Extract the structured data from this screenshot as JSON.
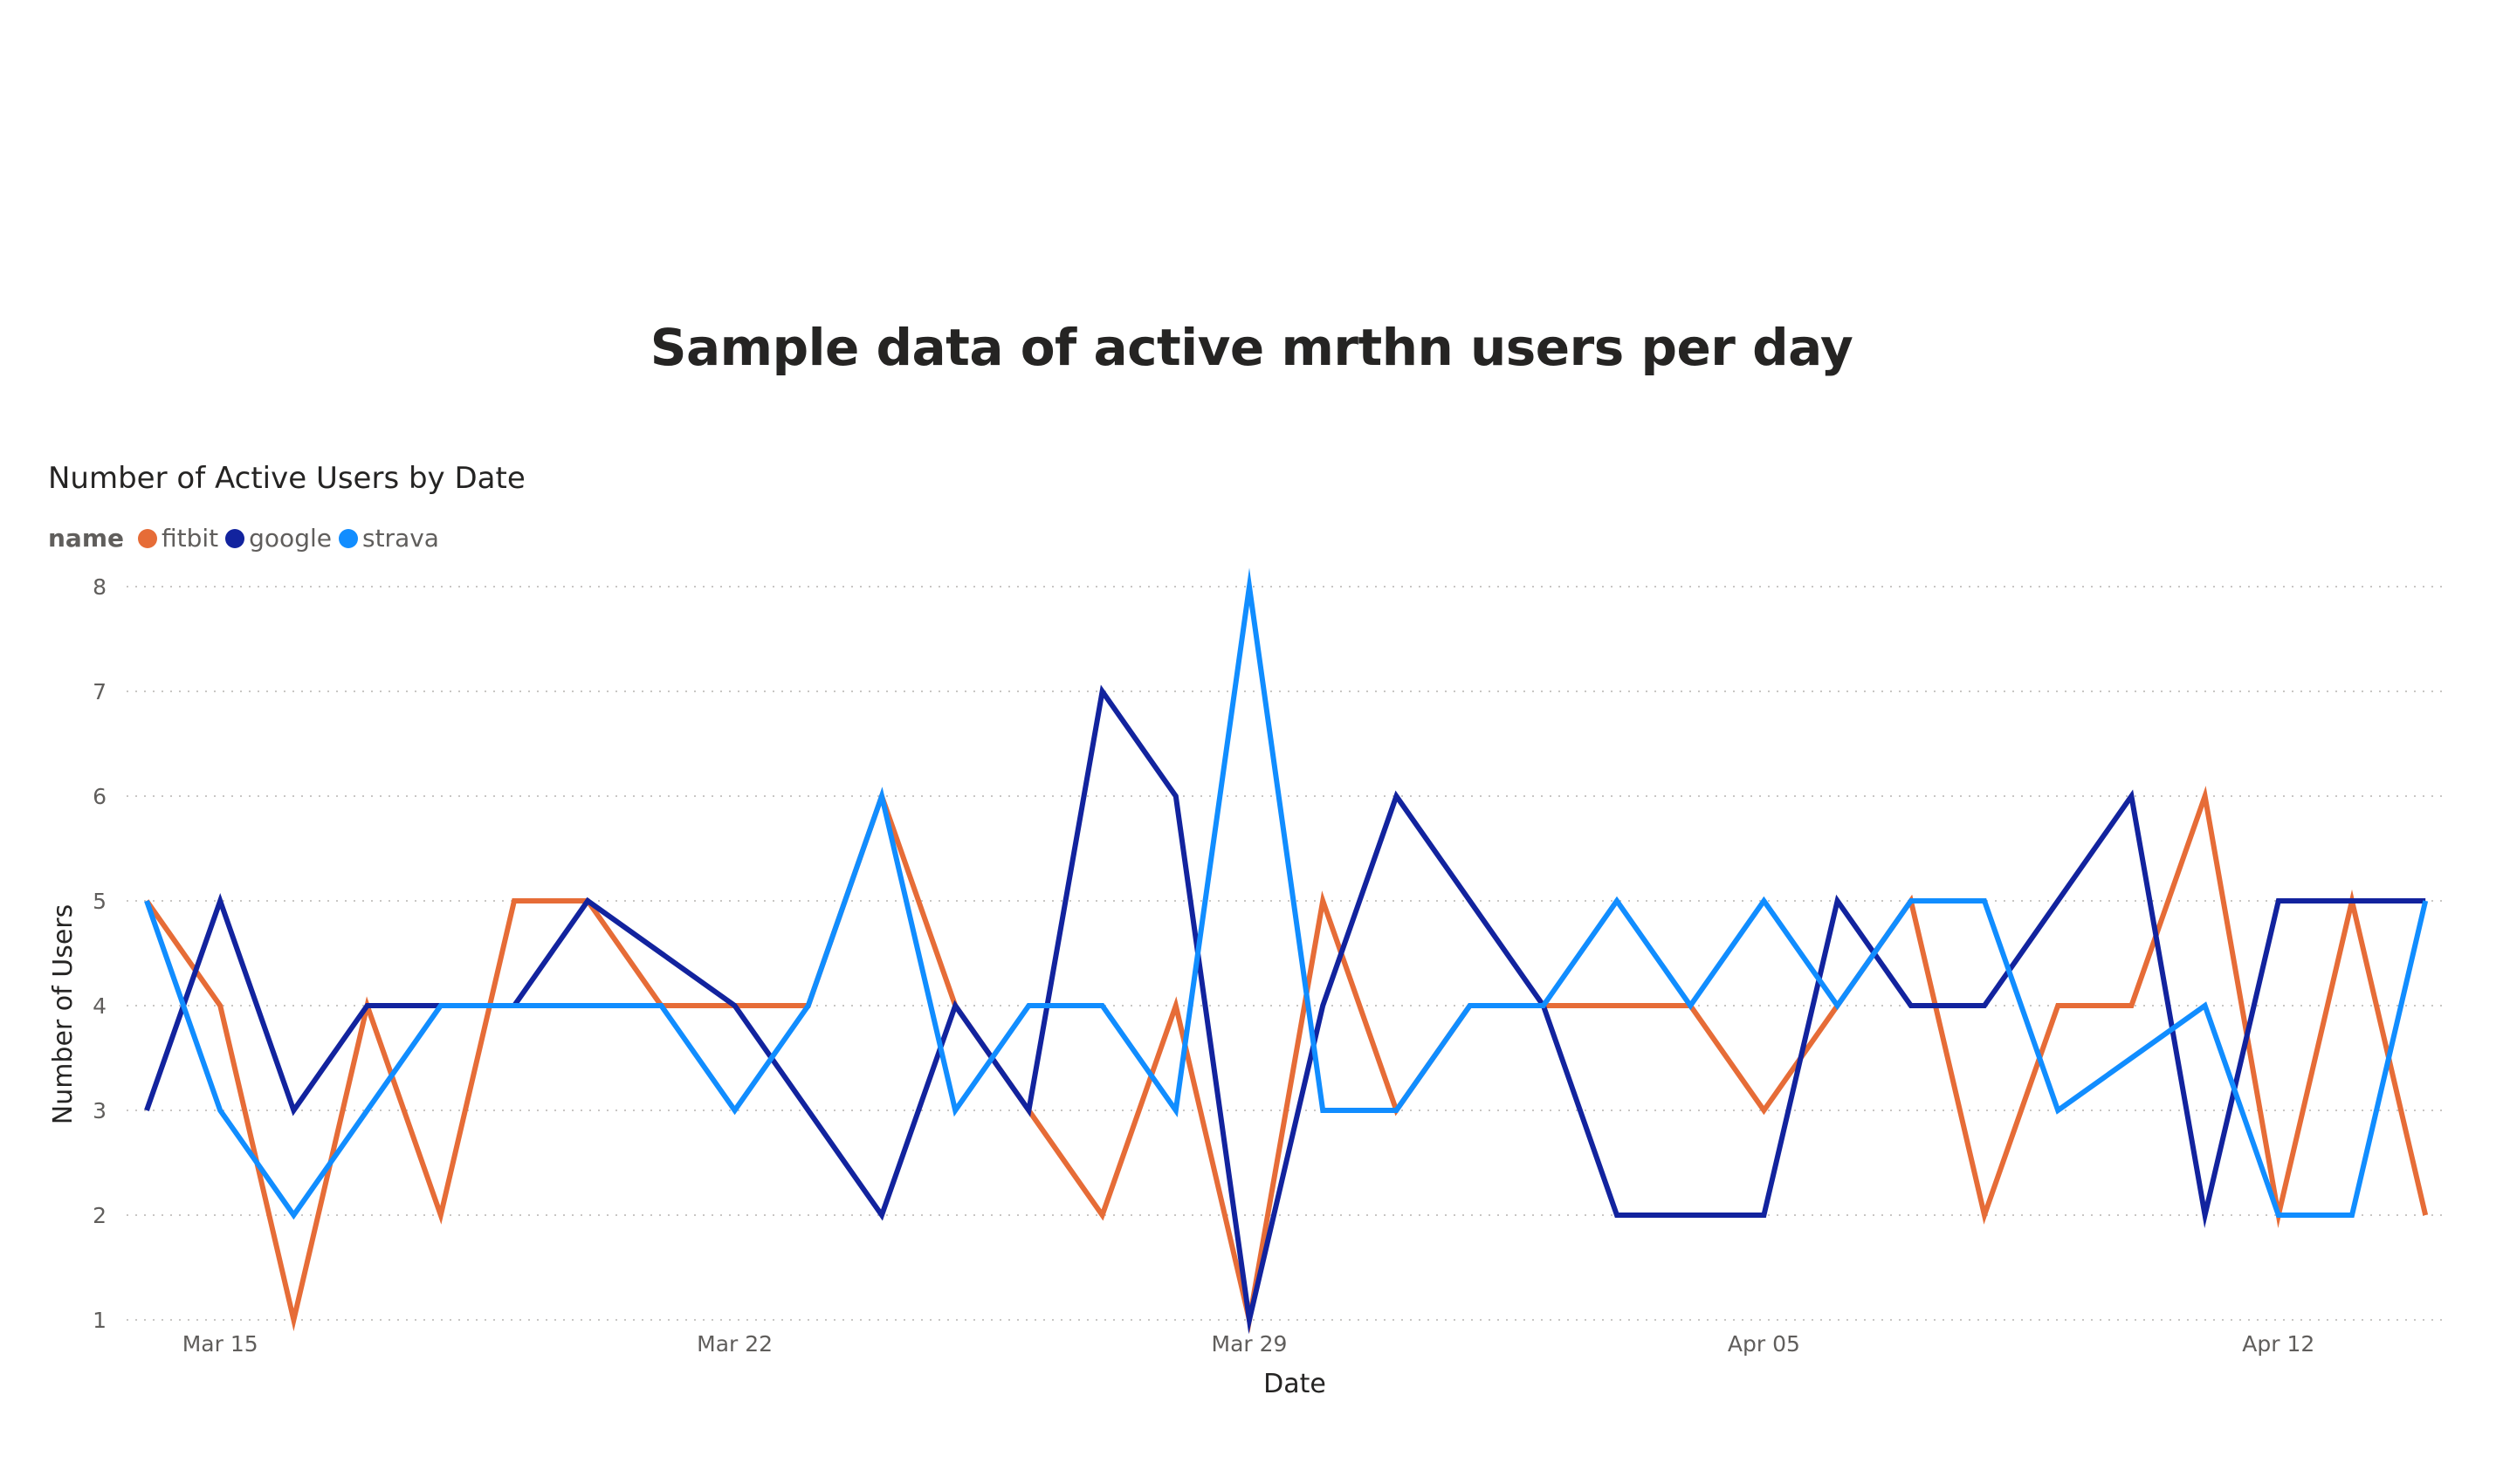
{
  "page_title": "Sample data of active mrthn users per day",
  "chart_data": {
    "type": "line",
    "title": "Number of Active Users by Date",
    "legend_title": "name",
    "legend_position": "top-left",
    "xlabel": "Date",
    "ylabel": "Number of Users",
    "ylim": [
      1,
      8
    ],
    "yticks": [
      1,
      2,
      3,
      4,
      5,
      6,
      7,
      8
    ],
    "x_tick_labels": [
      {
        "date": "2025-03-15",
        "label": "Mar 15"
      },
      {
        "date": "2025-03-22",
        "label": "Mar 22"
      },
      {
        "date": "2025-03-29",
        "label": "Mar 29"
      },
      {
        "date": "2025-04-05",
        "label": "Apr 05"
      },
      {
        "date": "2025-04-12",
        "label": "Apr 12"
      }
    ],
    "grid": "horizontal dotted",
    "x": [
      "2025-03-14",
      "2025-03-15",
      "2025-03-16",
      "2025-03-17",
      "2025-03-18",
      "2025-03-19",
      "2025-03-20",
      "2025-03-21",
      "2025-03-22",
      "2025-03-23",
      "2025-03-24",
      "2025-03-25",
      "2025-03-26",
      "2025-03-27",
      "2025-03-28",
      "2025-03-29",
      "2025-03-30",
      "2025-03-31",
      "2025-04-01",
      "2025-04-02",
      "2025-04-03",
      "2025-04-04",
      "2025-04-05",
      "2025-04-06",
      "2025-04-07",
      "2025-04-08",
      "2025-04-09",
      "2025-04-10",
      "2025-04-11",
      "2025-04-12",
      "2025-04-13",
      "2025-04-14"
    ],
    "series": [
      {
        "name": "fitbit",
        "color": "#E66C37",
        "values": [
          5,
          4,
          1,
          4,
          2,
          5,
          5,
          4,
          4,
          4,
          6,
          4,
          3,
          2,
          4,
          1,
          5,
          3,
          4,
          4,
          4,
          4,
          3,
          4,
          5,
          2,
          4,
          4,
          6,
          2,
          5,
          2
        ]
      },
      {
        "name": "google",
        "color": "#12239E",
        "values": [
          3,
          5,
          3,
          4,
          4,
          4,
          5,
          4.5,
          4,
          3,
          2,
          4,
          3,
          7,
          6,
          1,
          4,
          6,
          5,
          4,
          2,
          2,
          2,
          5,
          4,
          4,
          5,
          6,
          2,
          5,
          5,
          5
        ]
      },
      {
        "name": "strava",
        "color": "#118DFF",
        "values": [
          5,
          3,
          2,
          3,
          4,
          4,
          4,
          4,
          3,
          4,
          6,
          3,
          4,
          4,
          3,
          8,
          3,
          3,
          4,
          4,
          5,
          4,
          5,
          4,
          5,
          5,
          3,
          3.5,
          4,
          2,
          2,
          5
        ]
      }
    ]
  }
}
